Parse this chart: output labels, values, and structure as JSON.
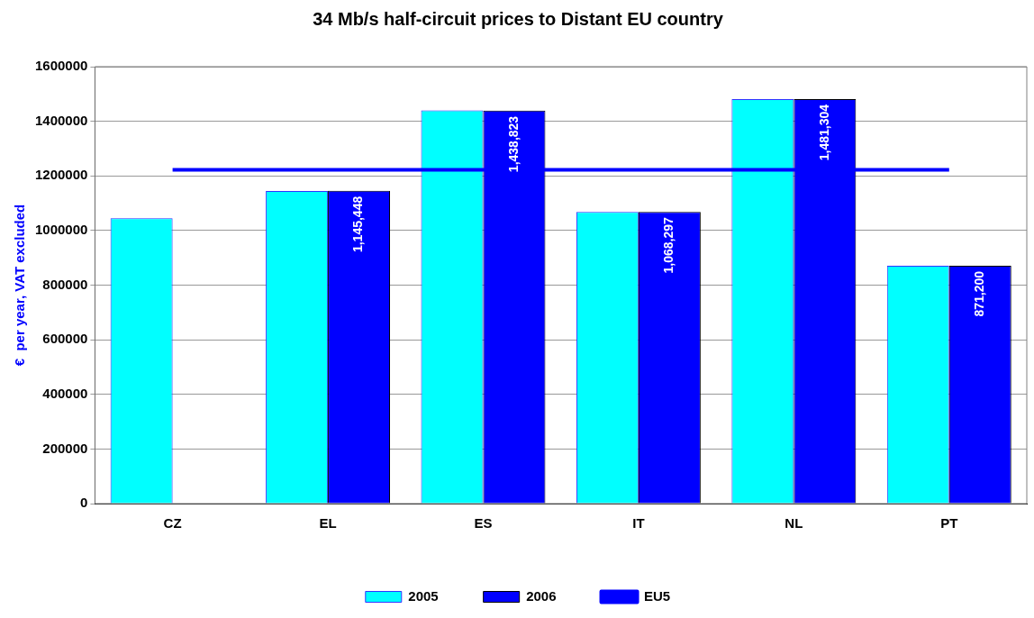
{
  "chart_data": {
    "type": "bar",
    "title": "34 Mb/s half-circuit prices to Distant EU country",
    "ylabel": "€  per year, VAT excluded",
    "categories": [
      "CZ",
      "EL",
      "ES",
      "IT",
      "NL",
      "PT"
    ],
    "series": [
      {
        "name": "2005",
        "color": "#00ffff",
        "values": [
          1045000,
          1145000,
          1440000,
          1068000,
          1481000,
          871000
        ]
      },
      {
        "name": "2006",
        "color": "#0000ff",
        "values": [
          null,
          1145448,
          1438823,
          1068297,
          1481304,
          871200
        ],
        "value_labels": [
          null,
          "1,145,448",
          "1,438,823",
          "1,068,297",
          "1,481,304",
          "871,200"
        ]
      },
      {
        "name": "EU5",
        "type": "line",
        "color": "#0000ff",
        "values": [
          1222000,
          1222000,
          1222000,
          1222000,
          1222000,
          1222000
        ]
      }
    ],
    "ylim": [
      0,
      1600000
    ],
    "yticks": [
      0,
      200000,
      400000,
      600000,
      800000,
      1000000,
      1200000,
      1400000,
      1600000
    ],
    "grid": "y",
    "legend": "bottom",
    "marker": "none"
  }
}
